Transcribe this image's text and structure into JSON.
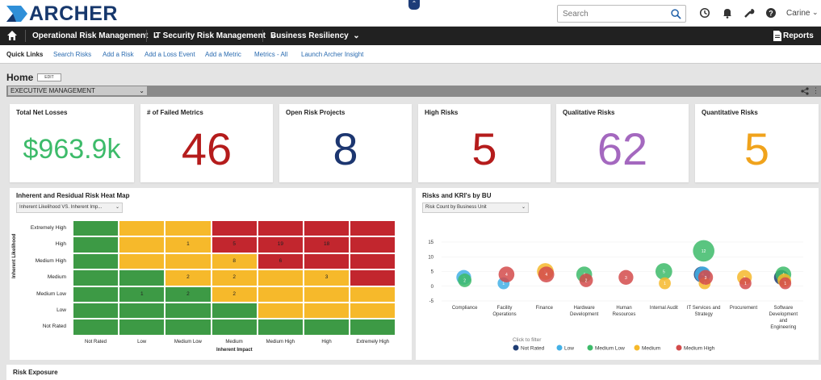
{
  "brand": {
    "logo_text": "ARCHER"
  },
  "search": {
    "placeholder": "Search"
  },
  "user": {
    "name": "Carine"
  },
  "nav": {
    "items": [
      {
        "label": "Operational Risk Management"
      },
      {
        "label": "IT Security Risk Management"
      },
      {
        "label": "Business Resiliency"
      }
    ],
    "reports_label": "Reports"
  },
  "quick_links": {
    "title": "Quick Links",
    "links": [
      {
        "label": "Search Risks"
      },
      {
        "label": "Add a Risk"
      },
      {
        "label": "Add a Loss Event"
      },
      {
        "label": "Add a Metric"
      },
      {
        "label": "Metrics - All"
      },
      {
        "label": "Launch Archer Insight"
      }
    ]
  },
  "page": {
    "title": "Home",
    "edit_label": "EDIT",
    "dashboard_select": "EXECUTIVE MANAGEMENT"
  },
  "kpis": [
    {
      "title": "Total Net Losses",
      "value": "$963.9k",
      "color": "#3dbb6a"
    },
    {
      "title": "# of Failed Metrics",
      "value": "46",
      "color": "#b51c1c"
    },
    {
      "title": "Open Risk Projects",
      "value": "8",
      "color": "#1c3670"
    },
    {
      "title": "High Risks",
      "value": "5",
      "color": "#b51c1c"
    },
    {
      "title": "Qualitative Risks",
      "value": "62",
      "color": "#a468bf"
    },
    {
      "title": "Quantitative Risks",
      "value": "5",
      "color": "#f0a31c"
    }
  ],
  "heatmap": {
    "title": "Inherent and Residual Risk Heat Map",
    "select": "Inherent Likelihood VS. Inherent Imp...",
    "y_axis_label": "Inherent Likelihood",
    "x_axis_label": "Inherent Impact",
    "rows": [
      "Extremely High",
      "High",
      "Medium High",
      "Medium",
      "Medium Low",
      "Low",
      "Not Rated"
    ],
    "cols": [
      "Not Rated",
      "Low",
      "Medium Low",
      "Medium",
      "Medium High",
      "High",
      "Extremely High"
    ],
    "colors": {
      "g": "#3d9a45",
      "y": "#f6b92b",
      "r": "#c2262e"
    },
    "grid": [
      [
        "g",
        "y",
        "y",
        "r",
        "r",
        "r",
        "r"
      ],
      [
        "g",
        "y",
        "y",
        "r",
        "r",
        "r",
        "r"
      ],
      [
        "g",
        "y",
        "y",
        "y",
        "r",
        "r",
        "r"
      ],
      [
        "g",
        "g",
        "y",
        "y",
        "y",
        "y",
        "r"
      ],
      [
        "g",
        "g",
        "g",
        "y",
        "y",
        "y",
        "y"
      ],
      [
        "g",
        "g",
        "g",
        "g",
        "y",
        "y",
        "y"
      ],
      [
        "g",
        "g",
        "g",
        "g",
        "g",
        "g",
        "g"
      ]
    ],
    "values": [
      [
        "",
        "",
        "",
        "",
        "",
        "",
        ""
      ],
      [
        "",
        "",
        "1",
        "5",
        "19",
        "18",
        ""
      ],
      [
        "",
        "",
        "",
        "8",
        "6",
        "",
        ""
      ],
      [
        "",
        "",
        "2",
        "2",
        "",
        "3",
        ""
      ],
      [
        "",
        "1",
        "2",
        "2",
        "",
        "",
        ""
      ],
      [
        "",
        "",
        "",
        "",
        "",
        "",
        ""
      ],
      [
        "",
        "",
        "",
        "",
        "",
        "",
        ""
      ]
    ]
  },
  "chart_data": {
    "type": "scatter",
    "title": "Risks and KRI's by BU",
    "select": "Risk Count by Business Unit",
    "ylim": [
      -5,
      15
    ],
    "y_ticks": [
      -5,
      0,
      5,
      10,
      15
    ],
    "categories": [
      "Compliance",
      "Facility Operations",
      "Finance",
      "Hardware Development",
      "Human Resources",
      "Internal Audit",
      "IT Services and Strategy",
      "Procurement",
      "Software Development and Engineering"
    ],
    "category_labels": [
      [
        "Compliance"
      ],
      [
        "Facility",
        "Operations"
      ],
      [
        "Finance"
      ],
      [
        "Hardware",
        "Development"
      ],
      [
        "Human",
        "Resources"
      ],
      [
        "Internal Audit"
      ],
      [
        "IT Services and",
        "Strategy"
      ],
      [
        "Procurement"
      ],
      [
        "Software",
        "Development",
        "and",
        "Engineering"
      ]
    ],
    "series": [
      {
        "name": "Not Rated",
        "color": "#1f3d73",
        "values": [
          null,
          null,
          null,
          null,
          null,
          null,
          4,
          null,
          3
        ]
      },
      {
        "name": "Low",
        "color": "#43b0e6",
        "values": [
          3,
          1,
          null,
          null,
          null,
          null,
          4,
          null,
          null
        ]
      },
      {
        "name": "Medium Low",
        "color": "#3dbb6a",
        "values": [
          2,
          null,
          null,
          4,
          null,
          5,
          12,
          null,
          4
        ]
      },
      {
        "name": "Medium",
        "color": "#f6b92b",
        "values": [
          null,
          null,
          5,
          null,
          null,
          1,
          1,
          3,
          2
        ]
      },
      {
        "name": "Medium High",
        "color": "#d34b4b",
        "values": [
          null,
          4,
          4,
          2,
          3,
          null,
          3,
          1,
          1
        ]
      }
    ],
    "bubble_labels_hidden_below": 0,
    "legend": {
      "title": "Click to filter",
      "position": "bottom"
    }
  },
  "risk_exposure": {
    "title": "Risk Exposure"
  }
}
